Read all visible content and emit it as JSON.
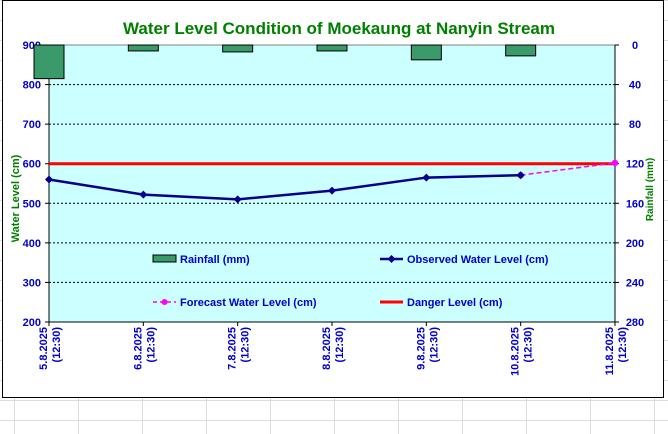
{
  "chart_data": {
    "type": "line",
    "title": "Water Level Condition of Moekaung at Nanyin Stream",
    "categories": [
      [
        "5.8.2025",
        "(12:30)"
      ],
      [
        "6.8.2025",
        "(12:30)"
      ],
      [
        "7.8.2025",
        "(12:30)"
      ],
      [
        "8.8.2025",
        "(12:30)"
      ],
      [
        "9.8.2025",
        "(12:30)"
      ],
      [
        "10.8.2025",
        "(12:30)"
      ],
      [
        "11.8.2025",
        "(12:30)"
      ]
    ],
    "ylabel": "Water Level (cm)",
    "ylim": [
      200,
      900
    ],
    "yticks": [
      900,
      800,
      700,
      600,
      500,
      400,
      300,
      200
    ],
    "y2label": "Rainfall (mm)",
    "y2lim": [
      0,
      280
    ],
    "y2ticks": [
      0,
      40,
      80,
      120,
      160,
      200,
      240,
      280
    ],
    "y2_reversed": true,
    "grid": true,
    "series": [
      {
        "name": "Rainfall (mm)",
        "kind": "bar",
        "axis": "right",
        "color": "#3a9a6a",
        "values": [
          34,
          6,
          7,
          6,
          15,
          11,
          null
        ]
      },
      {
        "name": "Observed Water Level (cm)",
        "kind": "line",
        "axis": "left",
        "color": "#00008b",
        "values": [
          560,
          522,
          510,
          532,
          565,
          571,
          null
        ]
      },
      {
        "name": "Forecast Water Level (cm)",
        "kind": "dashed-line",
        "axis": "left",
        "color": "#ff00ff",
        "values": [
          null,
          null,
          null,
          null,
          null,
          571,
          602
        ]
      },
      {
        "name": "Danger Level (cm)",
        "kind": "hline",
        "axis": "left",
        "color": "#ff0000",
        "value": 600
      }
    ],
    "background": "#ccffff"
  }
}
